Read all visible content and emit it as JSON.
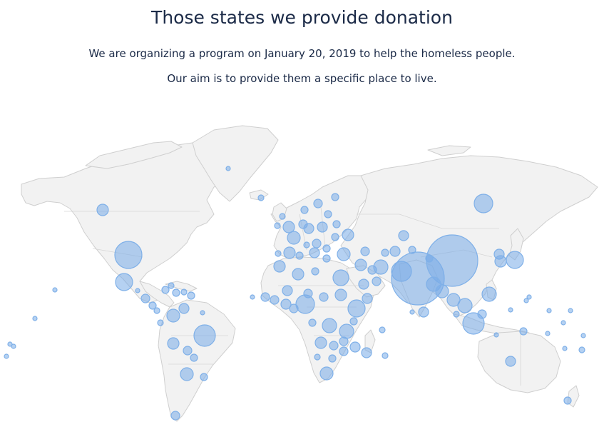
{
  "header": {
    "title": "Those states we provide donation",
    "line1": "We are organizing a program on January 20, 2019 to help the homeless people.",
    "line2": "Our aim is to provide them a specific place to live."
  },
  "map": {
    "land_color": "#f2f2f2",
    "border_color": "#cfcfcf",
    "bubble_fill": "rgba(120,172,232,0.55)",
    "bubble_stroke": "#7fb0e8"
  }
}
